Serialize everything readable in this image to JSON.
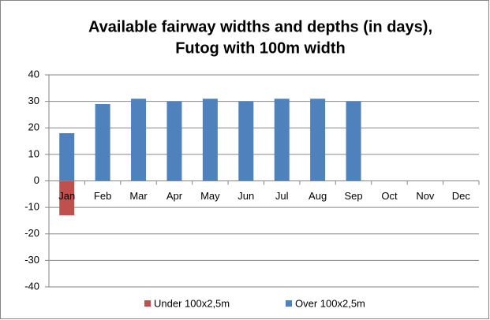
{
  "chart_data": {
    "type": "bar",
    "stacked": true,
    "title": [
      "Available fairway widths and depths (in days),",
      "Futog with 100m width"
    ],
    "categories": [
      "Jan",
      "Feb",
      "Mar",
      "Apr",
      "May",
      "Jun",
      "Jul",
      "Aug",
      "Sep",
      "Oct",
      "Nov",
      "Dec"
    ],
    "series": [
      {
        "name": "Under 100x2,5m",
        "color": "#c0504d",
        "values": [
          -13,
          0,
          0,
          0,
          0,
          0,
          0,
          0,
          0,
          0,
          0,
          0
        ]
      },
      {
        "name": "Over 100x2,5m",
        "color": "#4f81bd",
        "values": [
          18,
          29,
          31,
          30,
          31,
          30,
          31,
          31,
          30,
          0,
          0,
          0
        ]
      }
    ],
    "ylim": [
      -40,
      40
    ],
    "yticks": [
      -40,
      -30,
      -20,
      -10,
      0,
      10,
      20,
      30,
      40
    ],
    "grid": true,
    "legend": "bottom"
  }
}
